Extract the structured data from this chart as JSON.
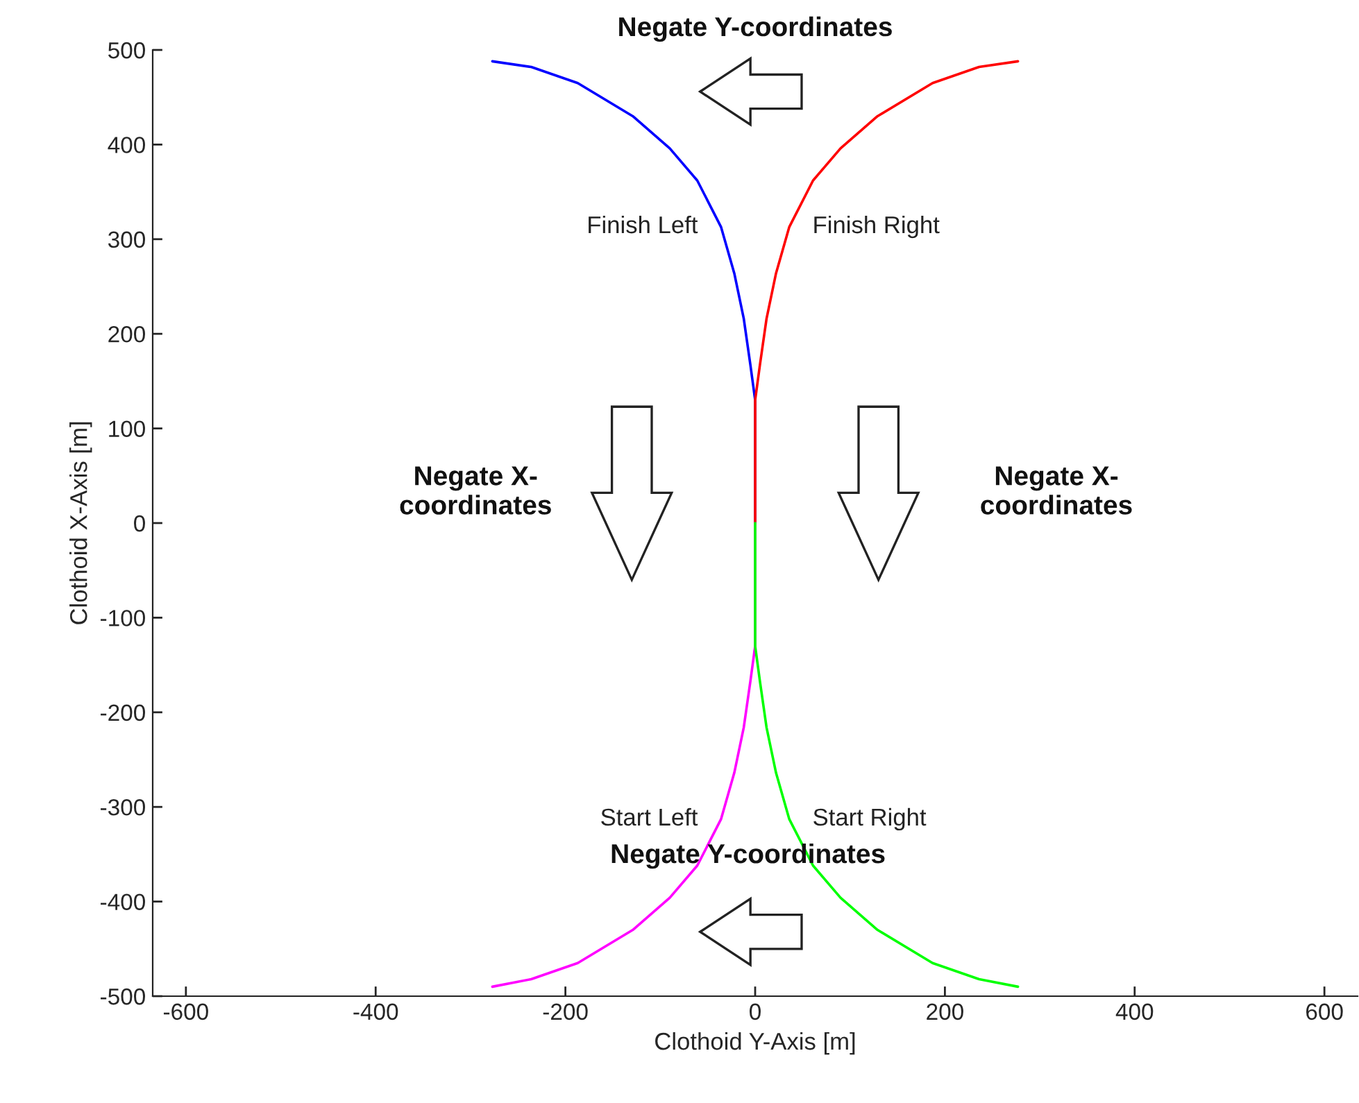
{
  "chart_data": {
    "type": "line",
    "xlabel": "Clothoid Y-Axis [m]",
    "ylabel": "Clothoid X-Axis [m]",
    "xlim": [
      -635,
      635
    ],
    "ylim": [
      -500,
      500
    ],
    "xticks": [
      -600,
      -400,
      -200,
      0,
      200,
      400,
      600
    ],
    "yticks": [
      -500,
      -400,
      -300,
      -200,
      -100,
      0,
      100,
      200,
      300,
      400,
      500
    ],
    "grid": false,
    "legend": false,
    "marker": "none",
    "line_style": "solid",
    "series": [
      {
        "name": "Finish Left",
        "color": "#0000ff",
        "x": [
          0,
          0,
          -5,
          -12,
          -22,
          -36,
          -61,
          -90,
          -129,
          -187,
          -236,
          -277
        ],
        "values": [
          0,
          130,
          167,
          216,
          264,
          313,
          362,
          396,
          430,
          465,
          482,
          488
        ]
      },
      {
        "name": "Finish Right",
        "color": "#ff0000",
        "x": [
          0,
          0,
          5,
          12,
          22,
          36,
          61,
          90,
          129,
          187,
          236,
          277
        ],
        "values": [
          0,
          130,
          167,
          216,
          264,
          313,
          362,
          396,
          430,
          465,
          482,
          488
        ]
      },
      {
        "name": "Start Left",
        "color": "#ff00ff",
        "x": [
          0,
          0,
          -5,
          -12,
          -22,
          -36,
          -61,
          -90,
          -129,
          -187,
          -236,
          -277
        ],
        "values": [
          0,
          -130,
          -167,
          -216,
          -264,
          -313,
          -362,
          -396,
          -430,
          -465,
          -482,
          -490
        ]
      },
      {
        "name": "Start Right",
        "color": "#00ff00",
        "x": [
          0,
          0,
          5,
          12,
          22,
          36,
          61,
          90,
          129,
          187,
          236,
          277
        ],
        "values": [
          0,
          -130,
          -167,
          -216,
          -264,
          -313,
          -362,
          -396,
          -430,
          -465,
          -482,
          -490
        ]
      }
    ],
    "annotations": [
      "Negate Y-coordinates",
      "Negate X-\ncoordinates",
      "Negate X-\ncoordinates",
      "Negate Y-coordinates"
    ]
  }
}
